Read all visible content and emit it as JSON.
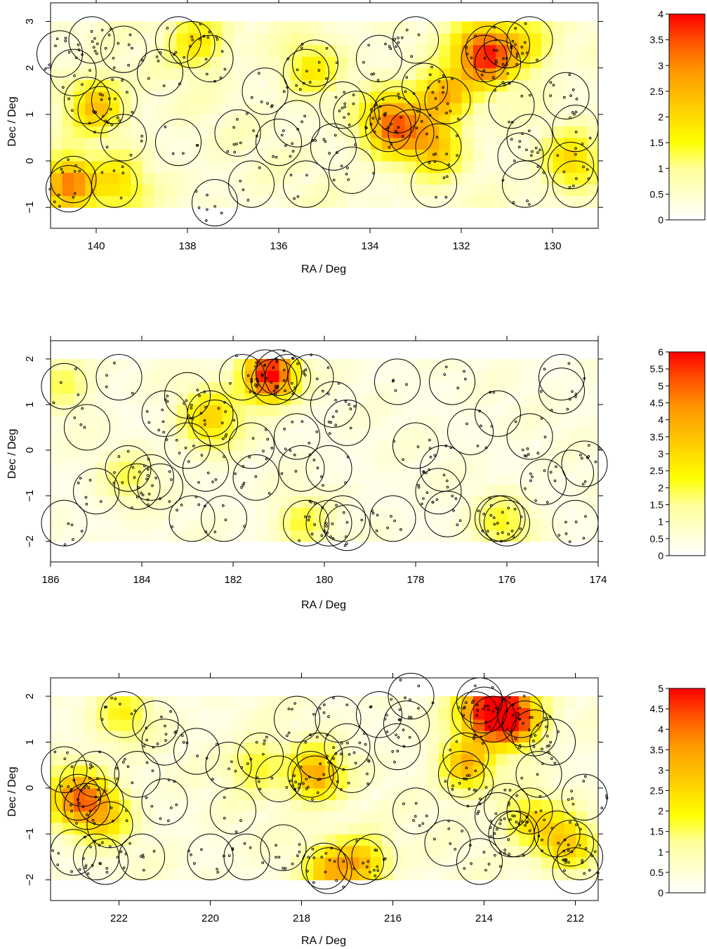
{
  "chart_data": [
    {
      "type": "heatmap",
      "xlabel": "RA / Deg",
      "ylabel": "Dec / Deg",
      "xlim": [
        141.0,
        129.0
      ],
      "ylim": [
        -1.45,
        3.4
      ],
      "x_reversed": true,
      "x_ticks": [
        140,
        138,
        136,
        134,
        132,
        130
      ],
      "y_ticks": [
        -1,
        0,
        1,
        2,
        3
      ],
      "x_tick_labels": [
        "140",
        "138",
        "136",
        "134",
        "132",
        "130"
      ],
      "y_tick_labels": [
        "−1",
        "0",
        "1",
        "2",
        "3"
      ],
      "field_extent": {
        "ra": [
          129.0,
          141.0
        ],
        "dec": [
          -1.0,
          3.0
        ]
      },
      "colorbar": {
        "min": 0,
        "max": 4,
        "ticks": [
          "0",
          "0.5",
          "1",
          "1.5",
          "2",
          "2.5",
          "3",
          "3.5",
          "4"
        ]
      },
      "density_peaks": [
        {
          "ra": 140.6,
          "dec": -0.5,
          "value": 2.8,
          "spread": 0.4
        },
        {
          "ra": 140.0,
          "dec": 1.2,
          "value": 2.0,
          "spread": 0.4
        },
        {
          "ra": 131.5,
          "dec": 2.3,
          "value": 3.4,
          "spread": 0.45
        },
        {
          "ra": 133.5,
          "dec": 0.8,
          "value": 2.9,
          "spread": 0.45
        },
        {
          "ra": 132.4,
          "dec": 1.4,
          "value": 2.2,
          "spread": 0.4
        },
        {
          "ra": 132.6,
          "dec": 0.3,
          "value": 1.9,
          "spread": 0.4
        },
        {
          "ra": 137.8,
          "dec": 2.6,
          "value": 1.5,
          "spread": 0.4
        },
        {
          "ra": 129.6,
          "dec": 0.0,
          "value": 1.6,
          "spread": 0.4
        },
        {
          "ra": 139.5,
          "dec": -0.5,
          "value": 1.4,
          "spread": 0.4
        },
        {
          "ra": 130.6,
          "dec": 2.5,
          "value": 1.3,
          "spread": 0.4
        },
        {
          "ra": 135.3,
          "dec": 2.0,
          "value": 1.2,
          "spread": 0.4
        }
      ],
      "circles": [
        [
          140.6,
          -0.6
        ],
        [
          140.5,
          -0.4
        ],
        [
          140.8,
          2.3
        ],
        [
          140.1,
          2.6
        ],
        [
          140.5,
          1.9
        ],
        [
          140.2,
          1.3
        ],
        [
          139.9,
          1.1
        ],
        [
          139.6,
          1.3
        ],
        [
          139.4,
          0.5
        ],
        [
          139.6,
          -0.5
        ],
        [
          139.4,
          2.4
        ],
        [
          138.6,
          1.9
        ],
        [
          138.2,
          0.4
        ],
        [
          138.2,
          2.6
        ],
        [
          137.9,
          2.5
        ],
        [
          137.5,
          2.2
        ],
        [
          137.4,
          -0.9
        ],
        [
          136.9,
          0.6
        ],
        [
          136.6,
          -0.5
        ],
        [
          136.0,
          0.4
        ],
        [
          136.3,
          1.5
        ],
        [
          135.4,
          1.9
        ],
        [
          135.2,
          2.1
        ],
        [
          135.6,
          0.8
        ],
        [
          135.4,
          -0.5
        ],
        [
          134.8,
          0.3
        ],
        [
          134.6,
          1.2
        ],
        [
          134.4,
          -0.2
        ],
        [
          134.3,
          1.0
        ],
        [
          133.8,
          2.2
        ],
        [
          133.5,
          0.9
        ],
        [
          133.6,
          0.7
        ],
        [
          133.4,
          1.1
        ],
        [
          133.1,
          0.6
        ],
        [
          133.0,
          2.6
        ],
        [
          132.8,
          1.6
        ],
        [
          132.5,
          0.3
        ],
        [
          132.3,
          1.3
        ],
        [
          132.6,
          -0.5
        ],
        [
          131.5,
          2.2
        ],
        [
          131.4,
          2.4
        ],
        [
          131.2,
          2.1
        ],
        [
          131.0,
          2.5
        ],
        [
          130.5,
          2.6
        ],
        [
          130.9,
          1.2
        ],
        [
          130.5,
          0.5
        ],
        [
          130.6,
          -0.5
        ],
        [
          129.7,
          1.4
        ],
        [
          129.5,
          0.7
        ],
        [
          129.6,
          -0.1
        ],
        [
          129.5,
          -0.5
        ],
        [
          130.7,
          0.1
        ]
      ],
      "circle_radius": 0.5
    },
    {
      "type": "heatmap",
      "xlabel": "RA / Deg",
      "ylabel": "Dec / Deg",
      "xlim": [
        186.0,
        174.0
      ],
      "ylim": [
        -2.45,
        2.4
      ],
      "x_reversed": true,
      "x_ticks": [
        186,
        184,
        182,
        180,
        178,
        176,
        174
      ],
      "y_ticks": [
        -2,
        -1,
        0,
        1,
        2
      ],
      "x_tick_labels": [
        "186",
        "184",
        "182",
        "180",
        "178",
        "176",
        "174"
      ],
      "y_tick_labels": [
        "−2",
        "−1",
        "0",
        "1",
        "2"
      ],
      "field_extent": {
        "ra": [
          174.0,
          186.0
        ],
        "dec": [
          -2.0,
          2.0
        ]
      },
      "colorbar": {
        "min": 0,
        "max": 6,
        "ticks": [
          "0",
          "0.5",
          "1",
          "1.5",
          "2",
          "2.5",
          "3",
          "3.5",
          "4",
          "4.5",
          "5",
          "5.5",
          "6"
        ]
      },
      "density_peaks": [
        {
          "ra": 181.2,
          "dec": 1.65,
          "value": 5.8,
          "spread": 0.4
        },
        {
          "ra": 182.5,
          "dec": 0.7,
          "value": 2.6,
          "spread": 0.45
        },
        {
          "ra": 176.1,
          "dec": -1.6,
          "value": 1.7,
          "spread": 0.4
        },
        {
          "ra": 180.5,
          "dec": -1.6,
          "value": 1.5,
          "spread": 0.4
        },
        {
          "ra": 185.7,
          "dec": 1.5,
          "value": 1.3,
          "spread": 0.4
        },
        {
          "ra": 184.3,
          "dec": -0.6,
          "value": 1.2,
          "spread": 0.4
        }
      ],
      "circles": [
        [
          185.7,
          1.4
        ],
        [
          185.7,
          -1.6
        ],
        [
          185.2,
          0.5
        ],
        [
          185.0,
          -0.9
        ],
        [
          184.5,
          1.6
        ],
        [
          184.3,
          -0.4
        ],
        [
          184.1,
          -0.8
        ],
        [
          183.8,
          -0.6
        ],
        [
          183.5,
          0.8
        ],
        [
          183.6,
          -0.8
        ],
        [
          183.0,
          0.1
        ],
        [
          183.0,
          1.2
        ],
        [
          182.9,
          -1.5
        ],
        [
          182.5,
          0.8
        ],
        [
          182.4,
          0.6
        ],
        [
          182.6,
          -0.4
        ],
        [
          182.2,
          -1.5
        ],
        [
          181.8,
          1.6
        ],
        [
          181.6,
          0.1
        ],
        [
          181.5,
          -0.6
        ],
        [
          181.3,
          1.7
        ],
        [
          181.1,
          1.5
        ],
        [
          181.0,
          1.7
        ],
        [
          180.8,
          1.6
        ],
        [
          180.6,
          0.3
        ],
        [
          180.5,
          -0.4
        ],
        [
          180.4,
          -1.6
        ],
        [
          180.3,
          1.6
        ],
        [
          179.9,
          -0.4
        ],
        [
          179.8,
          1.0
        ],
        [
          179.5,
          0.6
        ],
        [
          179.6,
          -1.5
        ],
        [
          179.5,
          -1.7
        ],
        [
          179.9,
          -1.6
        ],
        [
          178.4,
          1.5
        ],
        [
          178.5,
          -1.5
        ],
        [
          178.0,
          0.1
        ],
        [
          177.2,
          1.5
        ],
        [
          177.5,
          -0.9
        ],
        [
          177.4,
          -0.4
        ],
        [
          177.3,
          -1.4
        ],
        [
          176.8,
          0.4
        ],
        [
          176.2,
          -1.5
        ],
        [
          176.0,
          -1.6
        ],
        [
          176.1,
          -1.5
        ],
        [
          175.5,
          0.3
        ],
        [
          176.2,
          0.8
        ],
        [
          175.2,
          -0.7
        ],
        [
          174.8,
          1.6
        ],
        [
          174.8,
          1.3
        ],
        [
          174.5,
          -1.6
        ],
        [
          174.3,
          -0.3
        ],
        [
          174.6,
          -0.5
        ]
      ],
      "circle_radius": 0.5
    },
    {
      "type": "heatmap",
      "xlabel": "RA / Deg",
      "ylabel": "Dec / Deg",
      "xlim": [
        223.5,
        211.5
      ],
      "ylim": [
        -2.45,
        2.4
      ],
      "x_reversed": true,
      "x_ticks": [
        222,
        220,
        218,
        216,
        214,
        212
      ],
      "y_ticks": [
        -2,
        -1,
        0,
        1,
        2
      ],
      "x_tick_labels": [
        "222",
        "220",
        "218",
        "216",
        "214",
        "212"
      ],
      "y_tick_labels": [
        "−2",
        "−1",
        "0",
        "1",
        "2"
      ],
      "field_extent": {
        "ra": [
          211.5,
          223.5
        ],
        "dec": [
          -2.0,
          2.0
        ]
      },
      "colorbar": {
        "min": 0,
        "max": 5,
        "ticks": [
          "0",
          "0.5",
          "1",
          "1.5",
          "2",
          "2.5",
          "3",
          "3.5",
          "4",
          "4.5",
          "5"
        ]
      },
      "density_peaks": [
        {
          "ra": 213.9,
          "dec": 1.7,
          "value": 4.6,
          "spread": 0.45
        },
        {
          "ra": 213.3,
          "dec": 1.5,
          "value": 3.6,
          "spread": 0.4
        },
        {
          "ra": 222.9,
          "dec": -0.2,
          "value": 3.2,
          "spread": 0.45
        },
        {
          "ra": 217.7,
          "dec": 0.3,
          "value": 3.0,
          "spread": 0.4
        },
        {
          "ra": 214.4,
          "dec": 0.5,
          "value": 2.6,
          "spread": 0.4
        },
        {
          "ra": 216.7,
          "dec": -1.6,
          "value": 2.4,
          "spread": 0.4
        },
        {
          "ra": 217.4,
          "dec": -1.8,
          "value": 2.2,
          "spread": 0.4
        },
        {
          "ra": 212.2,
          "dec": -1.2,
          "value": 2.4,
          "spread": 0.4
        },
        {
          "ra": 213.0,
          "dec": -0.7,
          "value": 1.9,
          "spread": 0.4
        },
        {
          "ra": 222.3,
          "dec": -0.6,
          "value": 1.8,
          "spread": 0.4
        },
        {
          "ra": 219.0,
          "dec": 0.5,
          "value": 1.4,
          "spread": 0.4
        },
        {
          "ra": 221.9,
          "dec": 1.6,
          "value": 1.4,
          "spread": 0.4
        }
      ],
      "circles": [
        [
          223.2,
          0.4
        ],
        [
          222.9,
          -0.2
        ],
        [
          222.8,
          0.1
        ],
        [
          222.7,
          -0.4
        ],
        [
          222.4,
          -0.3
        ],
        [
          222.2,
          -0.8
        ],
        [
          222.5,
          0.3
        ],
        [
          223.0,
          -1.4
        ],
        [
          222.5,
          -1.5
        ],
        [
          222.3,
          -1.6
        ],
        [
          221.9,
          1.6
        ],
        [
          221.6,
          0.3
        ],
        [
          221.5,
          -1.5
        ],
        [
          221.2,
          1.4
        ],
        [
          221.0,
          1.0
        ],
        [
          221.0,
          -0.3
        ],
        [
          220.3,
          0.8
        ],
        [
          220.0,
          -1.5
        ],
        [
          219.6,
          0.5
        ],
        [
          219.5,
          -0.5
        ],
        [
          219.2,
          -1.5
        ],
        [
          218.9,
          0.7
        ],
        [
          218.5,
          0.2
        ],
        [
          218.4,
          -1.3
        ],
        [
          218.1,
          1.5
        ],
        [
          217.8,
          0.3
        ],
        [
          217.7,
          0.2
        ],
        [
          217.6,
          0.7
        ],
        [
          217.5,
          -1.7
        ],
        [
          217.4,
          -1.8
        ],
        [
          217.2,
          1.5
        ],
        [
          217.0,
          0.9
        ],
        [
          216.9,
          0.4
        ],
        [
          216.7,
          -1.6
        ],
        [
          216.4,
          -1.5
        ],
        [
          216.3,
          1.6
        ],
        [
          215.9,
          0.9
        ],
        [
          215.7,
          1.4
        ],
        [
          215.6,
          2.0
        ],
        [
          215.5,
          -0.5
        ],
        [
          214.8,
          -1.2
        ],
        [
          214.5,
          0.3
        ],
        [
          214.4,
          0.7
        ],
        [
          214.3,
          0.1
        ],
        [
          214.2,
          1.6
        ],
        [
          214.0,
          1.7
        ],
        [
          213.8,
          1.5
        ],
        [
          214.1,
          1.9
        ],
        [
          213.7,
          -0.6
        ],
        [
          214.1,
          -1.6
        ],
        [
          213.5,
          -0.4
        ],
        [
          213.4,
          -1.0
        ],
        [
          213.2,
          1.6
        ],
        [
          213.1,
          1.4
        ],
        [
          212.9,
          1.2
        ],
        [
          213.0,
          -0.5
        ],
        [
          212.8,
          0.3
        ],
        [
          212.5,
          1.0
        ],
        [
          212.4,
          -1.0
        ],
        [
          212.1,
          -1.2
        ],
        [
          212.0,
          -1.8
        ],
        [
          211.9,
          -1.5
        ],
        [
          211.8,
          -0.2
        ],
        [
          213.3,
          -1.0
        ]
      ],
      "circle_radius": 0.5
    }
  ]
}
